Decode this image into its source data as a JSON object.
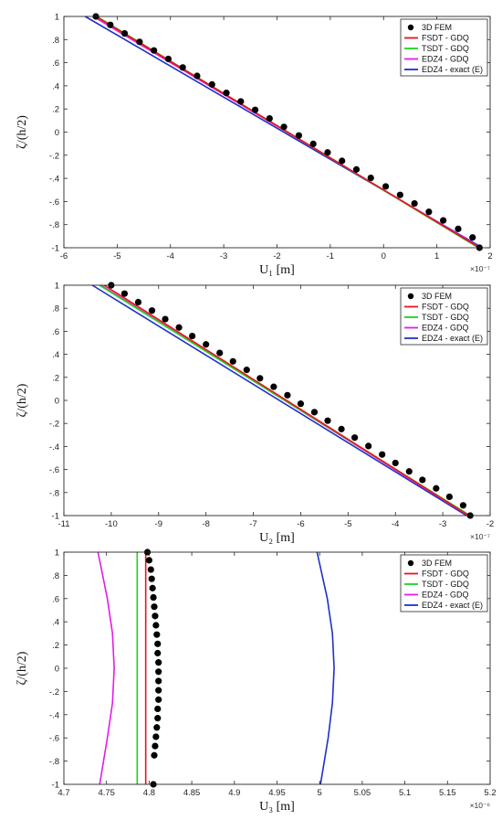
{
  "chart_data": [
    {
      "type": "line",
      "xlabel": "U₁  [m]",
      "ylabel": "ζ/(h/2)",
      "x_exponent": "×10⁻⁷",
      "xlim": [
        -6,
        2
      ],
      "ylim": [
        -1,
        1
      ],
      "xticks": [
        -6,
        -5,
        -4,
        -3,
        -2,
        -1,
        0,
        1,
        2
      ],
      "yticks": [
        -1,
        -0.8,
        -0.6,
        -0.4,
        -0.2,
        0,
        0.2,
        0.4,
        0.6,
        0.8,
        1
      ],
      "series": [
        {
          "name": "3D FEM",
          "kind": "points",
          "x": [
            -5.4,
            -5.13,
            -4.86,
            -4.58,
            -4.31,
            -4.04,
            -3.77,
            -3.5,
            -3.22,
            -2.95,
            -2.68,
            -2.41,
            -2.14,
            -1.87,
            -1.59,
            -1.32,
            -1.05,
            -0.78,
            -0.51,
            -0.24,
            0.04,
            0.31,
            0.58,
            0.85,
            1.12,
            1.4,
            1.67,
            1.8
          ],
          "y": [
            1.0,
            0.927,
            0.853,
            0.78,
            0.706,
            0.633,
            0.559,
            0.486,
            0.412,
            0.339,
            0.265,
            0.192,
            0.118,
            0.045,
            -0.029,
            -0.102,
            -0.176,
            -0.249,
            -0.323,
            -0.396,
            -0.47,
            -0.543,
            -0.617,
            -0.69,
            -0.764,
            -0.837,
            -0.911,
            -1.0
          ]
        },
        {
          "name": "FSDT - GDQ",
          "kind": "line",
          "x": [
            -5.4,
            1.8
          ],
          "y": [
            1,
            -1
          ]
        },
        {
          "name": "TSDT - GDQ",
          "kind": "line",
          "x": [
            -5.38,
            1.78
          ],
          "y": [
            1,
            -1
          ]
        },
        {
          "name": "EDZ4 - GDQ",
          "kind": "line",
          "x": [
            -5.45,
            1.82
          ],
          "y": [
            1,
            -1
          ]
        },
        {
          "name": "EDZ4 - exact (E)",
          "kind": "line",
          "x": [
            -5.6,
            1.85
          ],
          "y": [
            1,
            -1
          ]
        }
      ]
    },
    {
      "type": "line",
      "xlabel": "U₂  [m]",
      "ylabel": "ζ/(h/2)",
      "x_exponent": "×10⁻⁷",
      "xlim": [
        -11,
        -2
      ],
      "ylim": [
        -1,
        1
      ],
      "xticks": [
        -11,
        -10,
        -9,
        -8,
        -7,
        -6,
        -5,
        -4,
        -3,
        -2
      ],
      "yticks": [
        -1,
        -0.8,
        -0.6,
        -0.4,
        -0.2,
        0,
        0.2,
        0.4,
        0.6,
        0.8,
        1
      ],
      "series": [
        {
          "name": "3D FEM",
          "kind": "points",
          "x": [
            -10.0,
            -9.72,
            -9.43,
            -9.14,
            -8.86,
            -8.57,
            -8.29,
            -8.0,
            -7.71,
            -7.43,
            -7.14,
            -6.86,
            -6.57,
            -6.28,
            -6.0,
            -5.71,
            -5.43,
            -5.14,
            -4.86,
            -4.57,
            -4.28,
            -4.0,
            -3.71,
            -3.43,
            -3.14,
            -2.86,
            -2.57,
            -2.42
          ],
          "y": [
            1.0,
            0.927,
            0.853,
            0.78,
            0.706,
            0.633,
            0.559,
            0.486,
            0.412,
            0.339,
            0.265,
            0.192,
            0.118,
            0.045,
            -0.029,
            -0.102,
            -0.176,
            -0.249,
            -0.323,
            -0.396,
            -0.47,
            -0.543,
            -0.617,
            -0.69,
            -0.764,
            -0.837,
            -0.911,
            -1.0
          ]
        },
        {
          "name": "FSDT - GDQ",
          "kind": "line",
          "x": [
            -10.15,
            -2.45
          ],
          "y": [
            1,
            -1
          ]
        },
        {
          "name": "TSDT - GDQ",
          "kind": "line",
          "x": [
            -10.25,
            -2.42
          ],
          "y": [
            1,
            -1
          ]
        },
        {
          "name": "EDZ4 - GDQ",
          "kind": "line",
          "x": [
            -10.22,
            -2.46
          ],
          "y": [
            1,
            -1
          ]
        },
        {
          "name": "EDZ4 - exact (E)",
          "kind": "line",
          "x": [
            -10.4,
            -2.5
          ],
          "y": [
            1,
            -1
          ]
        }
      ]
    },
    {
      "type": "line",
      "xlabel": "U₃  [m]",
      "ylabel": "ζ/(h/2)",
      "x_exponent": "×10⁻⁶",
      "xlim": [
        4.7,
        5.2
      ],
      "ylim": [
        -1,
        1
      ],
      "xticks": [
        4.7,
        4.75,
        4.8,
        4.85,
        4.9,
        4.95,
        5,
        5.05,
        5.1,
        5.15,
        5.2
      ],
      "yticks": [
        -1,
        -0.8,
        -0.6,
        -0.4,
        -0.2,
        0,
        0.2,
        0.4,
        0.6,
        0.8,
        1
      ],
      "series": [
        {
          "name": "3D FEM",
          "kind": "points",
          "x": [
            4.798,
            4.8,
            4.802,
            4.803,
            4.804,
            4.805,
            4.806,
            4.807,
            4.808,
            4.809,
            4.81,
            4.81,
            4.811,
            4.811,
            4.811,
            4.811,
            4.811,
            4.81,
            4.81,
            4.809,
            4.808,
            4.807,
            4.806,
            4.805
          ],
          "y": [
            1.0,
            0.93,
            0.85,
            0.77,
            0.69,
            0.61,
            0.53,
            0.45,
            0.37,
            0.29,
            0.21,
            0.13,
            0.05,
            -0.03,
            -0.11,
            -0.19,
            -0.27,
            -0.35,
            -0.43,
            -0.51,
            -0.59,
            -0.67,
            -0.75,
            -1.0
          ]
        },
        {
          "name": "FSDT - GDQ",
          "kind": "line",
          "x": [
            4.796,
            4.796
          ],
          "y": [
            1,
            -1
          ]
        },
        {
          "name": "TSDT - GDQ",
          "kind": "line",
          "x": [
            4.786,
            4.786
          ],
          "y": [
            1,
            -1
          ]
        },
        {
          "name": "EDZ4 - GDQ",
          "kind": "line",
          "x": [
            4.74,
            4.751,
            4.757,
            4.759,
            4.757,
            4.751,
            4.742
          ],
          "y": [
            1,
            0.6,
            0.3,
            0,
            -0.3,
            -0.6,
            -1
          ]
        },
        {
          "name": "EDZ4 - exact (E)",
          "kind": "line",
          "x": [
            4.997,
            5.009,
            5.015,
            5.017,
            5.015,
            5.01,
            5.001
          ],
          "y": [
            1,
            0.6,
            0.3,
            0,
            -0.3,
            -0.6,
            -1
          ]
        }
      ]
    }
  ],
  "legend": {
    "entries": [
      "3D FEM",
      "FSDT - GDQ",
      "TSDT - GDQ",
      "EDZ4 - GDQ",
      "EDZ4 - exact (E)"
    ],
    "placement": "top-right"
  },
  "colors": {
    "3D FEM": "#000000",
    "FSDT - GDQ": "#e8141b",
    "TSDT - GDQ": "#1ed41e",
    "EDZ4 - GDQ": "#e61be6",
    "EDZ4 - exact (E)": "#1f30c8"
  }
}
